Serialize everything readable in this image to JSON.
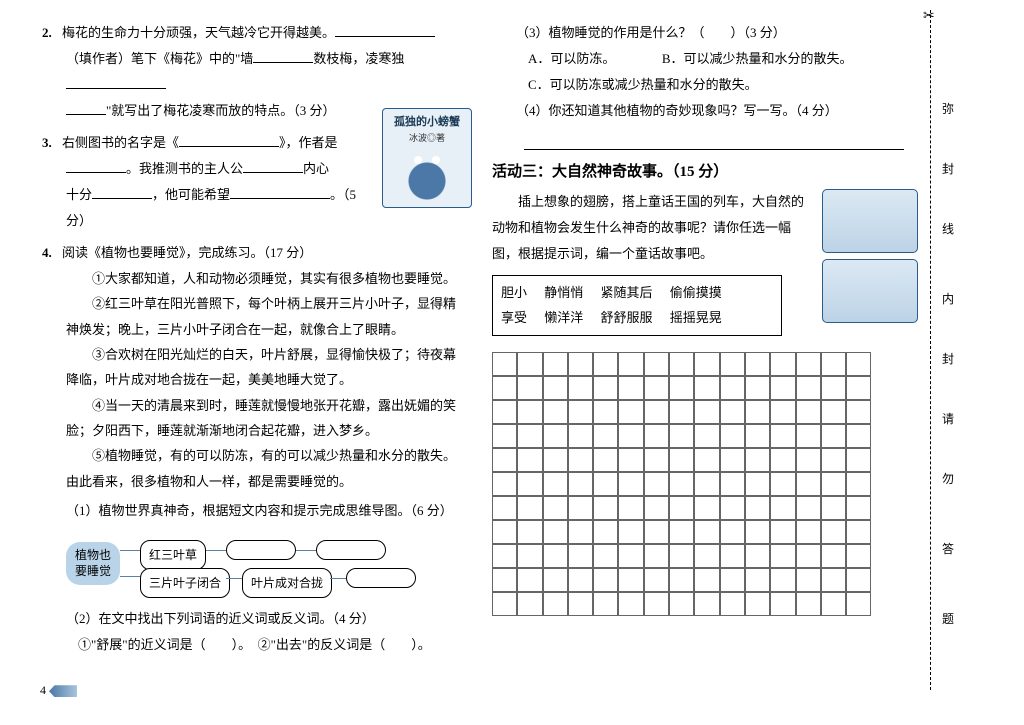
{
  "left": {
    "q2": {
      "num": "2.",
      "line1a": "梅花的生命力十分顽强，天气越冷它开得越美。",
      "line2a": "（填作者）笔下《梅花》中的\"墙",
      "line2b": "数枝梅，凌寒独",
      "line3": "\"就写出了梅花凌寒而放的特点。（3 分）"
    },
    "q3": {
      "num": "3.",
      "line1a": "右侧图书的名字是《",
      "line1b": "》，作者是",
      "line2a": "。我推测书的主人公",
      "line2b": "内心",
      "line3a": "十分",
      "line3b": "，他可能希望",
      "line3c": "。（5 分）"
    },
    "book": {
      "title": "孤独的小螃蟹",
      "author": "冰波◎著"
    },
    "q4": {
      "num": "4.",
      "head": "阅读《植物也要睡觉》，完成练习。（17 分）",
      "p1": "①大家都知道，人和动物必须睡觉，其实有很多植物也要睡觉。",
      "p2": "②红三叶草在阳光普照下，每个叶柄上展开三片小叶子，显得精神焕发；晚上，三片小叶子闭合在一起，就像合上了眼睛。",
      "p3": "③合欢树在阳光灿烂的白天，叶片舒展，显得愉快极了；待夜幕降临，叶片成对地合拢在一起，美美地睡大觉了。",
      "p4": "④当一天的清晨来到时，睡莲就慢慢地张开花瓣，露出妩媚的笑脸；夕阳西下，睡莲就渐渐地闭合起花瓣，进入梦乡。",
      "p5": "⑤植物睡觉，有的可以防冻，有的可以减少热量和水分的散失。由此看来，很多植物和人一样，都是需要睡觉的。",
      "s1": "（1）植物世界真神奇，根据短文内容和提示完成思维导图。（6 分）",
      "dmain": "植物也\n要睡觉",
      "dnode1": "红三叶草",
      "dnode2": "三片叶子闭合",
      "dnode3": "叶片成对合拢",
      "s2": "（2）在文中找出下列词语的近义词或反义词。（4 分）",
      "s2a": "①\"舒展\"的近义词是（　　）。　②\"出去\"的反义词是（　　）。"
    }
  },
  "right": {
    "s3": "（3）植物睡觉的作用是什么？（　　）（3 分）",
    "optA": "A．可以防冻。",
    "optB": "B．可以减少热量和水分的散失。",
    "optC": "C．可以防冻或减少热量和水分的散失。",
    "s4": "（4）你还知道其他植物的奇妙现象吗？写一写。（4 分）",
    "act3title": "活动三：大自然神奇故事。（15 分）",
    "act3body": "插上想象的翅膀，搭上童话王国的列车，大自然的动物和植物会发生什么神奇的故事呢？请你任选一幅图，根据提示词，编一个童话故事吧。",
    "words": [
      "胆小",
      "静悄悄",
      "紧随其后",
      "偷偷摸摸",
      "享受",
      "懒洋洋",
      "舒舒服服",
      "摇摇晃晃"
    ]
  },
  "sidebar": [
    "弥",
    "封",
    "线",
    "内",
    "封",
    "请",
    "勿",
    "答",
    "题"
  ],
  "grid": {
    "rows": 11,
    "cols": 15
  },
  "pagenum": "4"
}
